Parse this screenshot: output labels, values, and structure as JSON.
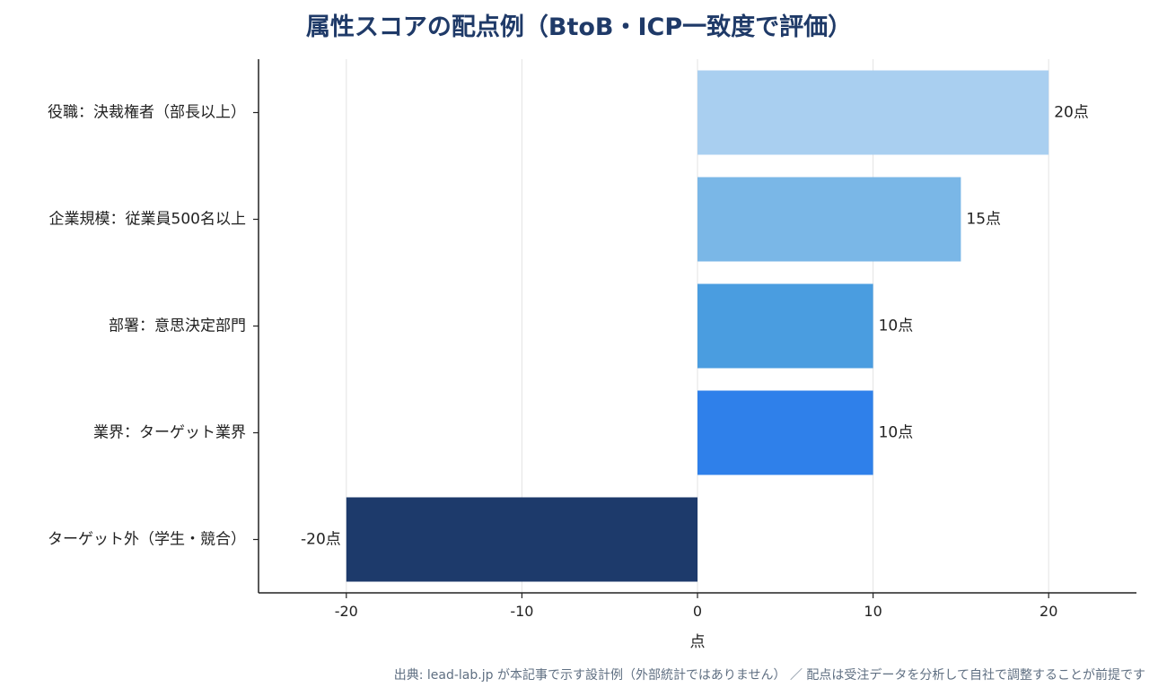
{
  "chart_data": {
    "type": "bar",
    "orientation": "horizontal",
    "title": "属性スコアの配点例（BtoB・ICP一致度で評価）",
    "xlabel": "点",
    "ylabel": "",
    "xlim": [
      -25,
      25
    ],
    "xticks": [
      -20,
      -10,
      0,
      10,
      20
    ],
    "grid": "vertical",
    "categories": [
      "役職：決裁権者（部長以上）",
      "企業規模：従業員500名以上",
      "部署：意思決定部門",
      "業界：ターゲット業界",
      "ターゲット外（学生・競合）"
    ],
    "values": [
      20,
      15,
      10,
      10,
      -20
    ],
    "value_labels": [
      "20点",
      "15点",
      "10点",
      "10点",
      "-20点"
    ],
    "colors": [
      "#a9cff0",
      "#7ab7e7",
      "#4a9de0",
      "#2f80ea",
      "#1d3a6b"
    ]
  },
  "footnote": "出典: lead-lab.jp が本記事で示す設計例（外部統計ではありません） ／ 配点は受注データを分析して自社で調整することが前提です"
}
